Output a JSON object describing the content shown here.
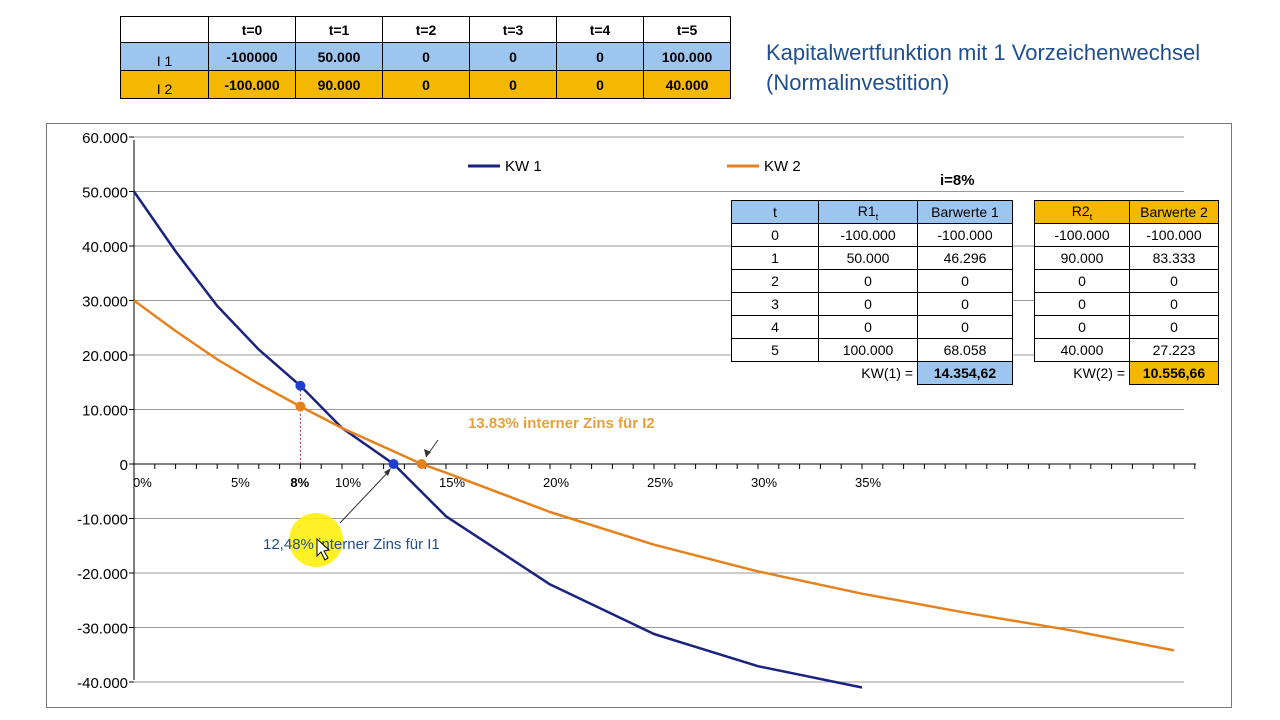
{
  "title_line1": "Kapitalwertfunktion mit 1 Vorzeichenwechsel",
  "title_line2": "(Normalinvestition)",
  "cashflow_table": {
    "headers": [
      "",
      "t=0",
      "t=1",
      "t=2",
      "t=3",
      "t=4",
      "t=5"
    ],
    "rows": [
      {
        "label": "I 1",
        "values": [
          "-100000",
          "50.000",
          "0",
          "0",
          "0",
          "100.000"
        ]
      },
      {
        "label": "I 2",
        "values": [
          "-100.000",
          "90.000",
          "0",
          "0",
          "0",
          "40.000"
        ]
      }
    ]
  },
  "rate_label": "i=8%",
  "table1": {
    "headers": [
      "t",
      "R1",
      "t",
      "Barwerte 1"
    ],
    "rows": [
      [
        "0",
        "-100.000",
        "-100.000"
      ],
      [
        "1",
        "50.000",
        "46.296"
      ],
      [
        "2",
        "0",
        "0"
      ],
      [
        "3",
        "0",
        "0"
      ],
      [
        "4",
        "0",
        "0"
      ],
      [
        "5",
        "100.000",
        "68.058"
      ]
    ],
    "kw_label": "KW(1) =",
    "kw_value": "14.354,62"
  },
  "table2": {
    "headers": [
      "R2",
      "t",
      "Barwerte 2"
    ],
    "rows": [
      [
        "-100.000",
        "-100.000"
      ],
      [
        "90.000",
        "83.333"
      ],
      [
        "0",
        "0"
      ],
      [
        "0",
        "0"
      ],
      [
        "0",
        "0"
      ],
      [
        "40.000",
        "27.223"
      ]
    ],
    "kw_label": "KW(2) =",
    "kw_value": "10.556,66"
  },
  "colors": {
    "kw1": "#1a237e",
    "kw2": "#e6821e",
    "annot2": "#e8a13a",
    "annot1": "#1f4f8f",
    "highlight": "#ffee00"
  },
  "chart_data": {
    "type": "line",
    "x_unit": "%",
    "xlim": [
      0,
      50
    ],
    "ylim": [
      -40000,
      60000
    ],
    "y_ticks": [
      "60.000",
      "50.000",
      "40.000",
      "30.000",
      "20.000",
      "10.000",
      "0",
      "-10.000",
      "-20.000",
      "-30.000",
      "-40.000"
    ],
    "y_tick_values": [
      60000,
      50000,
      40000,
      30000,
      20000,
      10000,
      0,
      -10000,
      -20000,
      -30000,
      -40000
    ],
    "x_ticks": [
      "0%",
      "5%",
      "10%",
      "15%",
      "20%",
      "25%",
      "30%",
      "35%"
    ],
    "x_tick_values": [
      0,
      5,
      10,
      15,
      20,
      25,
      30,
      35
    ],
    "marked_rate_label": "8%",
    "marked_rate": 8,
    "grid": true,
    "legend_placement": "top",
    "series": [
      {
        "name": "KW 1",
        "color": "#1a237e",
        "x": [
          0,
          2,
          4,
          6,
          8,
          10,
          12.48,
          15,
          20,
          25,
          30,
          35
        ],
        "y": [
          50000,
          39000,
          29000,
          21000,
          14355,
          6600,
          0,
          -9600,
          -22100,
          -31200,
          -37100,
          -41000
        ]
      },
      {
        "name": "KW 2",
        "color": "#e6821e",
        "x": [
          0,
          2,
          4,
          6,
          8,
          10,
          13.83,
          15,
          20,
          25,
          30,
          35,
          40,
          45,
          50
        ],
        "y": [
          30000,
          24400,
          19200,
          14700,
          10557,
          6600,
          0,
          -1600,
          -8800,
          -14800,
          -19700,
          -23800,
          -27300,
          -30500,
          -34200
        ]
      }
    ],
    "points": [
      {
        "x": 8,
        "y": 14355,
        "series": "KW 1"
      },
      {
        "x": 8,
        "y": 10557,
        "series": "KW 2"
      },
      {
        "x": 12.48,
        "y": 0,
        "series": "KW 1"
      },
      {
        "x": 13.83,
        "y": 0,
        "series": "KW 2"
      }
    ],
    "annotations": [
      {
        "text": "13.83% interner Zins für I2",
        "x": 13.83,
        "y": 0
      },
      {
        "text": "12,48% interner Zins für I1",
        "x": 12.48,
        "y": 0
      }
    ]
  }
}
